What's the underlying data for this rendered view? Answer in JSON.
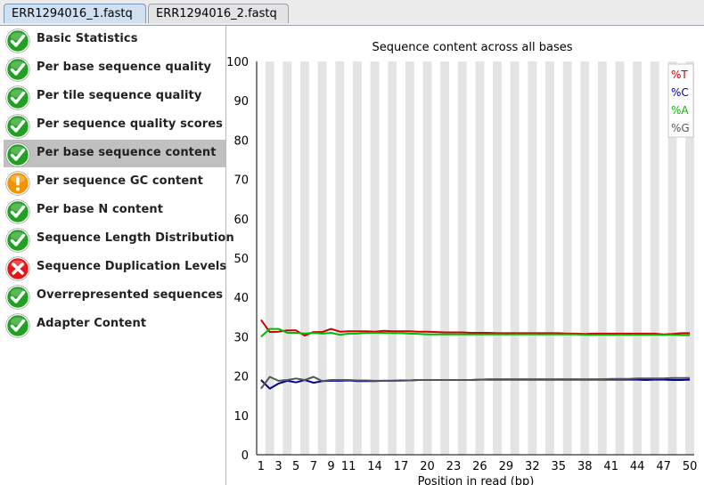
{
  "tabs": [
    {
      "label": "ERR1294016_1.fastq",
      "active": true
    },
    {
      "label": "ERR1294016_2.fastq",
      "active": false
    }
  ],
  "modules": [
    {
      "label": "Basic Statistics",
      "status": "pass",
      "icon": "check-icon"
    },
    {
      "label": "Per base sequence quality",
      "status": "pass",
      "icon": "check-icon"
    },
    {
      "label": "Per tile sequence quality",
      "status": "pass",
      "icon": "check-icon"
    },
    {
      "label": "Per sequence quality scores",
      "status": "pass",
      "icon": "check-icon"
    },
    {
      "label": "Per base sequence content",
      "status": "pass",
      "icon": "check-icon",
      "selected": true
    },
    {
      "label": "Per sequence GC content",
      "status": "warn",
      "icon": "warning-icon"
    },
    {
      "label": "Per base N content",
      "status": "pass",
      "icon": "check-icon"
    },
    {
      "label": "Sequence Length Distribution",
      "status": "pass",
      "icon": "check-icon"
    },
    {
      "label": "Sequence Duplication Levels",
      "status": "fail",
      "icon": "cross-icon"
    },
    {
      "label": "Overrepresented sequences",
      "status": "pass",
      "icon": "check-icon"
    },
    {
      "label": "Adapter Content",
      "status": "pass",
      "icon": "check-icon"
    }
  ],
  "status_colors": {
    "pass": "#22a022",
    "warn": "#f29400",
    "fail": "#e01818"
  },
  "chart_data": {
    "type": "line",
    "title": "Sequence content across all bases",
    "xlabel": "Position in read (bp)",
    "ylabel": "",
    "ylim": [
      0,
      100
    ],
    "y_ticks": [
      "0",
      "10",
      "20",
      "30",
      "40",
      "50",
      "60",
      "70",
      "80",
      "90",
      "100"
    ],
    "x": [
      1,
      2,
      3,
      4,
      5,
      6,
      7,
      8,
      9,
      10,
      11,
      12,
      13,
      14,
      15,
      16,
      17,
      18,
      19,
      20,
      21,
      22,
      23,
      24,
      25,
      26,
      27,
      28,
      29,
      30,
      31,
      32,
      33,
      34,
      35,
      36,
      37,
      38,
      39,
      40,
      41,
      42,
      43,
      44,
      45,
      46,
      47,
      48,
      49,
      50
    ],
    "x_tick_labels": [
      "1",
      "3",
      "5",
      "7",
      "9",
      "11",
      "14",
      "17",
      "20",
      "23",
      "26",
      "29",
      "32",
      "35",
      "38",
      "41",
      "44",
      "47",
      "50"
    ],
    "x_tick_positions": [
      1,
      3,
      5,
      7,
      9,
      11,
      14,
      17,
      20,
      23,
      26,
      29,
      32,
      35,
      38,
      41,
      44,
      47,
      50
    ],
    "grid": "alternating vertical bands",
    "legend_position": "top-right",
    "series": [
      {
        "name": "%T",
        "color": "#cc0000",
        "values": [
          34.3,
          31.2,
          31.3,
          31.6,
          31.6,
          30.3,
          31.2,
          31.2,
          32.0,
          31.3,
          31.4,
          31.4,
          31.4,
          31.3,
          31.5,
          31.4,
          31.4,
          31.4,
          31.3,
          31.3,
          31.2,
          31.1,
          31.1,
          31.1,
          31.0,
          31.0,
          31.0,
          30.9,
          30.9,
          30.9,
          30.9,
          30.9,
          30.9,
          30.9,
          30.9,
          30.8,
          30.8,
          30.7,
          30.8,
          30.8,
          30.8,
          30.8,
          30.8,
          30.8,
          30.8,
          30.8,
          30.6,
          30.7,
          30.9,
          30.9
        ]
      },
      {
        "name": "%C",
        "color": "#000099",
        "values": [
          19.0,
          16.8,
          18.1,
          18.8,
          18.4,
          19.0,
          18.3,
          18.7,
          18.8,
          18.8,
          18.9,
          18.7,
          18.7,
          18.7,
          18.8,
          18.8,
          18.9,
          18.9,
          19.0,
          19.0,
          19.0,
          19.0,
          19.0,
          19.0,
          19.0,
          19.1,
          19.1,
          19.1,
          19.1,
          19.1,
          19.1,
          19.1,
          19.1,
          19.1,
          19.1,
          19.1,
          19.1,
          19.1,
          19.1,
          19.1,
          19.1,
          19.1,
          19.1,
          19.1,
          19.0,
          19.1,
          19.1,
          19.0,
          19.0,
          19.1
        ]
      },
      {
        "name": "%A",
        "color": "#00bb00",
        "values": [
          30.0,
          32.0,
          32.0,
          31.0,
          31.0,
          30.8,
          31.0,
          30.8,
          31.0,
          30.5,
          30.8,
          30.8,
          31.0,
          31.0,
          31.0,
          30.9,
          30.9,
          30.8,
          30.7,
          30.6,
          30.6,
          30.6,
          30.6,
          30.6,
          30.6,
          30.6,
          30.6,
          30.6,
          30.6,
          30.6,
          30.6,
          30.6,
          30.6,
          30.6,
          30.6,
          30.6,
          30.6,
          30.5,
          30.5,
          30.5,
          30.5,
          30.5,
          30.5,
          30.5,
          30.5,
          30.5,
          30.5,
          30.5,
          30.4,
          30.4
        ]
      },
      {
        "name": "%G",
        "color": "#555555",
        "values": [
          16.8,
          19.8,
          18.8,
          19.0,
          19.4,
          19.0,
          19.8,
          18.7,
          19.0,
          19.0,
          19.0,
          18.9,
          18.9,
          18.8,
          18.8,
          18.8,
          18.8,
          18.9,
          19.0,
          19.0,
          19.0,
          19.0,
          19.0,
          19.0,
          19.0,
          19.1,
          19.2,
          19.2,
          19.2,
          19.2,
          19.2,
          19.2,
          19.2,
          19.2,
          19.2,
          19.2,
          19.2,
          19.2,
          19.2,
          19.2,
          19.3,
          19.3,
          19.3,
          19.4,
          19.4,
          19.4,
          19.4,
          19.5,
          19.5,
          19.5
        ]
      }
    ]
  }
}
